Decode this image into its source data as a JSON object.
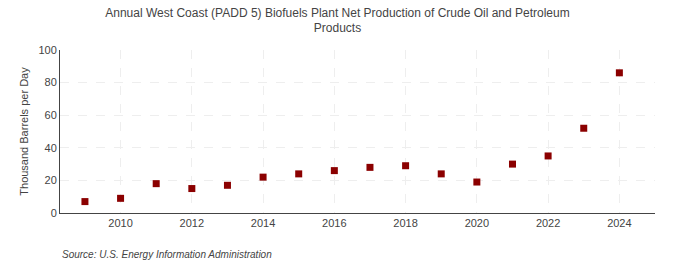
{
  "chart_data": {
    "type": "scatter",
    "title": "Annual West Coast (PADD 5) Biofuels Plant Net Production of Crude Oil and Petroleum\nProducts",
    "ylabel": "Thousand Barrels per Day",
    "annotations": [
      "Source: U.S. Energy Information Administration"
    ],
    "x": [
      2009,
      2010,
      2011,
      2012,
      2013,
      2014,
      2015,
      2016,
      2017,
      2018,
      2019,
      2020,
      2021,
      2022,
      2023,
      2024
    ],
    "values": [
      7,
      9,
      18,
      15,
      17,
      22,
      24,
      26,
      28,
      29,
      24,
      19,
      30,
      35,
      52,
      86
    ],
    "color": "#8b0000",
    "marker": "square",
    "xlim": [
      2008.3,
      2025.0
    ],
    "xticks": [
      2010,
      2012,
      2014,
      2016,
      2018,
      2020,
      2022,
      2024
    ],
    "ylim": [
      0,
      100
    ],
    "yticks": [
      0,
      20,
      40,
      60,
      80,
      100
    ],
    "grid": true
  }
}
